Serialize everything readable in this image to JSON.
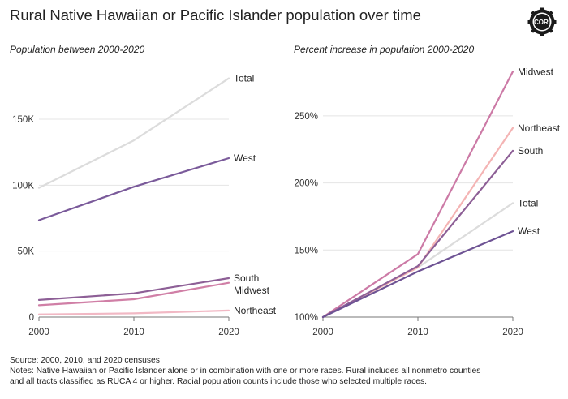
{
  "header": {
    "title": "Rural Native Hawaiian or Pacific Islander population over time",
    "logo_text": "CORI"
  },
  "chart_data": [
    {
      "type": "line",
      "title": "Population between 2000-2020",
      "x": [
        2000,
        2010,
        2020
      ],
      "x_tick_labels": [
        "2000",
        "2010",
        "2020"
      ],
      "ylim": [
        0,
        190000
      ],
      "y_ticks": [
        0,
        50000,
        100000,
        150000
      ],
      "y_tick_labels": [
        "0",
        "50K",
        "100K",
        "150K"
      ],
      "grid": true,
      "series": [
        {
          "name": "Total",
          "values": [
            98000,
            134000,
            181000
          ],
          "color": "#dcdcdc"
        },
        {
          "name": "West",
          "values": [
            73500,
            98800,
            120500
          ],
          "color": "#7a5a9a"
        },
        {
          "name": "South",
          "values": [
            13000,
            18000,
            29500
          ],
          "color": "#8d5f96"
        },
        {
          "name": "Midwest",
          "values": [
            9000,
            13500,
            26000
          ],
          "color": "#d07fa6"
        },
        {
          "name": "Northeast",
          "values": [
            2000,
            2800,
            5000
          ],
          "color": "#f1b8c4"
        }
      ]
    },
    {
      "type": "line",
      "title": "Percent increase in population 2000-2020",
      "x": [
        2000,
        2010,
        2020
      ],
      "x_tick_labels": [
        "2000",
        "2010",
        "2020"
      ],
      "ylim": [
        100,
        285
      ],
      "y_ticks": [
        100,
        150,
        200,
        250
      ],
      "y_tick_labels": [
        "100%",
        "150%",
        "200%",
        "250%"
      ],
      "grid": true,
      "series": [
        {
          "name": "Midwest",
          "values": [
            100,
            147,
            283
          ],
          "color": "#cc7aa6"
        },
        {
          "name": "Northeast",
          "values": [
            100,
            137,
            241
          ],
          "color": "#f4b4b4"
        },
        {
          "name": "South",
          "values": [
            100,
            138,
            224
          ],
          "color": "#8d5f96"
        },
        {
          "name": "Total",
          "values": [
            100,
            137,
            185
          ],
          "color": "#dcdcdc"
        },
        {
          "name": "West",
          "values": [
            100,
            134,
            164
          ],
          "color": "#6e5394"
        }
      ]
    }
  ],
  "notes": {
    "source": "Source: 2000, 2010, and 2020 censuses",
    "line1": "Notes: Native Hawaiian or Pacific Islander alone or in combination with one or more races. Rural includes all nonmetro counties",
    "line2": "and all tracts classified as RUCA 4 or higher. Racial population counts include those who selected multiple races."
  }
}
